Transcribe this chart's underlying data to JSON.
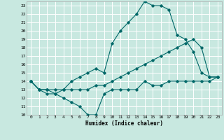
{
  "title": "",
  "xlabel": "Humidex (Indice chaleur)",
  "xlim": [
    -0.5,
    23.5
  ],
  "ylim": [
    10,
    23.5
  ],
  "yticks": [
    10,
    11,
    12,
    13,
    14,
    15,
    16,
    17,
    18,
    19,
    20,
    21,
    22,
    23
  ],
  "xticks": [
    0,
    1,
    2,
    3,
    4,
    5,
    6,
    7,
    8,
    9,
    10,
    11,
    12,
    13,
    14,
    15,
    16,
    17,
    18,
    19,
    20,
    21,
    22,
    23
  ],
  "bg_color": "#c8e8e0",
  "line_color": "#006868",
  "grid_color": "#ffffff",
  "line1_x": [
    0,
    1,
    2,
    3,
    4,
    5,
    6,
    7,
    8,
    9,
    10,
    11,
    12,
    13,
    14,
    15,
    16,
    17,
    18,
    19,
    20,
    21,
    22,
    23
  ],
  "line1_y": [
    14,
    13,
    13,
    12.5,
    12,
    11.5,
    11,
    10,
    10,
    12.5,
    13,
    13,
    13,
    13,
    14,
    13.5,
    13.5,
    14,
    14,
    14,
    14,
    14,
    14,
    14.5
  ],
  "line2_x": [
    0,
    1,
    2,
    3,
    4,
    5,
    6,
    7,
    8,
    9,
    10,
    11,
    12,
    13,
    14,
    15,
    16,
    17,
    18,
    19,
    20,
    21,
    22,
    23
  ],
  "line2_y": [
    14,
    13,
    12.5,
    12.5,
    13,
    14,
    14.5,
    15,
    15.5,
    15,
    18.5,
    20,
    21,
    22,
    23.5,
    23,
    23,
    22.5,
    19.5,
    19,
    17.5,
    15,
    14.5,
    14.5
  ],
  "line3_x": [
    0,
    1,
    2,
    3,
    4,
    5,
    6,
    7,
    8,
    9,
    10,
    11,
    12,
    13,
    14,
    15,
    16,
    17,
    18,
    19,
    20,
    21,
    22,
    23
  ],
  "line3_y": [
    14,
    13,
    13,
    13,
    13,
    13,
    13,
    13,
    13.5,
    13.5,
    14,
    14.5,
    15,
    15.5,
    16,
    16.5,
    17,
    17.5,
    18,
    18.5,
    19,
    18,
    14.5,
    14.5
  ]
}
